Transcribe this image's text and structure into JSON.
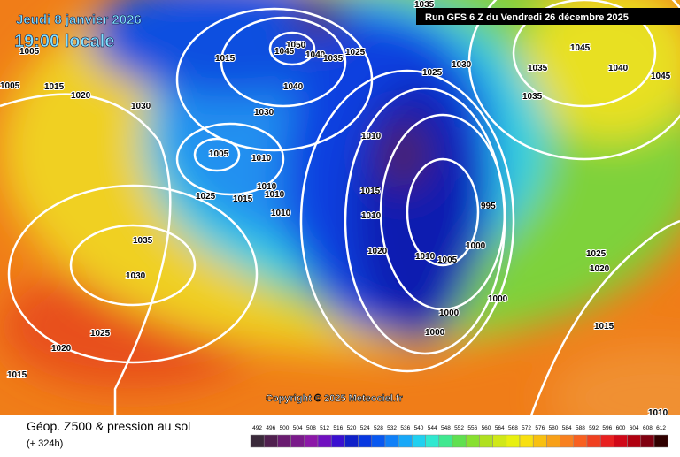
{
  "header": {
    "date": "Jeudi 8 janvier 2026",
    "time": "19:00 locale",
    "run": "Run GFS 6 Z du Vendredi 26 décembre 2025"
  },
  "copyright": "Copyright © 2025 Meteociel.fr",
  "footer": {
    "title": "Géop. Z500 & pression au sol",
    "lead": "(+ 324h)"
  },
  "isobar_labels": [
    1035,
    1005,
    1005,
    1015,
    1020,
    1030,
    1015,
    1050,
    1045,
    1040,
    1035,
    1025,
    1040,
    1030,
    1025,
    1030,
    1035,
    1045,
    1040,
    1045,
    1035,
    1010,
    1005,
    1010,
    1025,
    1015,
    1010,
    1010,
    1010,
    1015,
    1010,
    995,
    1000,
    1010,
    1005,
    1020,
    1035,
    1030,
    1025,
    1020,
    1015,
    1000,
    1000,
    1000,
    1025,
    1020,
    1015,
    1010
  ],
  "colorbar": {
    "labels": [
      492,
      496,
      500,
      504,
      508,
      512,
      516,
      520,
      524,
      528,
      532,
      536,
      540,
      544,
      548,
      552,
      556,
      560,
      564,
      568,
      572,
      576,
      580,
      584,
      588,
      592,
      596,
      600,
      604,
      608,
      612
    ],
    "colors": [
      "#3a2a3a",
      "#50204f",
      "#6a1c70",
      "#7a1a8a",
      "#8c18a8",
      "#7010c0",
      "#3a10d0",
      "#1020c8",
      "#0838e0",
      "#0858f0",
      "#1080f8",
      "#18a8f8",
      "#20d0f0",
      "#30e8d0",
      "#40e890",
      "#60e050",
      "#88e030",
      "#b0e020",
      "#d0e818",
      "#e8f010",
      "#f8e010",
      "#f8c010",
      "#f8a018",
      "#f88020",
      "#f86020",
      "#f04020",
      "#e82020",
      "#d00818",
      "#b00010",
      "#800010",
      "#300000"
    ]
  }
}
